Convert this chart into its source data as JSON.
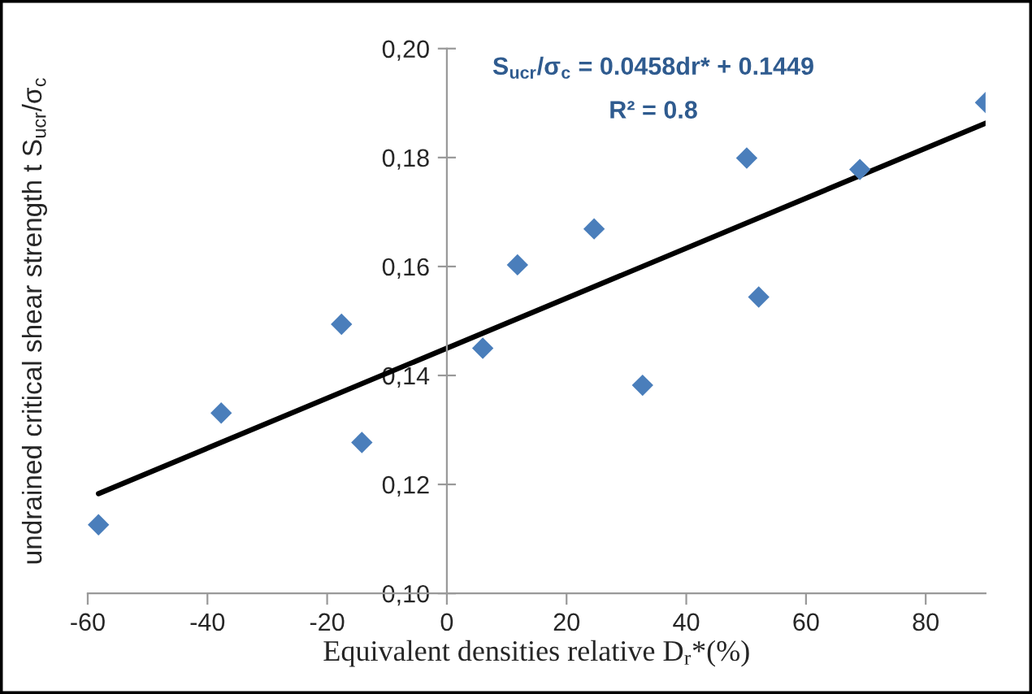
{
  "chart_data": {
    "type": "scatter",
    "xlabel": "Equivalent densities relative D$_{r}$*(%)",
    "ylabel": "undrained critical shear strength t S$_{ucr}$/σ$_{c}$",
    "annotations": [
      "S$_{ucr}$/σ$_{c}$ = 0.0458dr* + 0.1449",
      "R² = 0.8"
    ],
    "series": [
      {
        "color": "#4a7ebb",
        "marker": "diamond",
        "x": [
          -58.2,
          -37.7,
          -17.6,
          -14.2,
          6.0,
          11.8,
          24.6,
          32.7,
          50.1,
          52.1,
          69.0,
          90.0
        ],
        "values": [
          0.1126,
          0.1331,
          0.1494,
          0.1277,
          0.145,
          0.1603,
          0.1669,
          0.1382,
          0.1799,
          0.1544,
          0.1778,
          0.1901
        ]
      },
      {
        "type": "line",
        "color": "#000000",
        "marker": "none",
        "line_style": "solid",
        "x": [
          -58.2,
          90.0
        ],
        "values": [
          0.1183,
          0.1863
        ]
      }
    ],
    "xlim": [
      -60,
      90
    ],
    "xticks": [
      -60,
      -40,
      -20,
      0,
      20,
      40,
      60,
      80
    ],
    "ylim": [
      0.1,
      0.2
    ],
    "yticks": [
      {
        "value": 0.1,
        "label": "0,10"
      },
      {
        "value": 0.12,
        "label": "0,12"
      },
      {
        "value": 0.14,
        "label": "0,14"
      },
      {
        "value": 0.16,
        "label": "0,16"
      },
      {
        "value": 0.18,
        "label": "0,18"
      },
      {
        "value": 0.2,
        "label": "0,20"
      }
    ],
    "grid": false,
    "legend": false
  }
}
